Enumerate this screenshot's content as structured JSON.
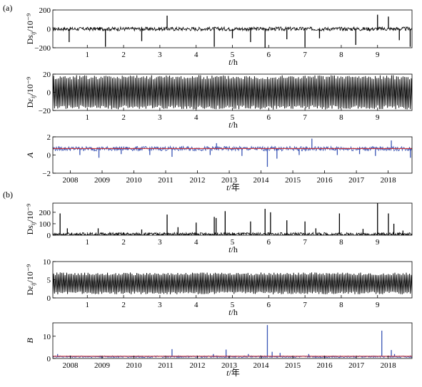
{
  "figure": {
    "part_a_label": "(a)",
    "part_b_label": "(b)"
  },
  "colors": {
    "black_series": "#000000",
    "blue_series": "#3a55b5",
    "red_series": "#cc2222",
    "axis": "#000000"
  },
  "chart_data": [
    {
      "type": "line",
      "panel": "a1",
      "ylabel": "Ds_ij/10⁻⁹",
      "xlabel": "t/h",
      "x_ticks": [
        "1",
        "2",
        "3",
        "4",
        "5",
        "6",
        "7",
        "8",
        "9"
      ],
      "x_tick_values": [
        1,
        2,
        3,
        4,
        5,
        6,
        7,
        8,
        9
      ],
      "xlim": [
        0.05,
        9.95
      ],
      "y_ticks": [
        "200",
        "0",
        "−200"
      ],
      "y_tick_values": [
        200,
        0,
        -200
      ],
      "ylim": [
        -200,
        200
      ],
      "series": [
        {
          "color": "#000000",
          "baseline": 0,
          "band": 20,
          "spikes": [
            [
              0.5,
              -140
            ],
            [
              1.5,
              -190
            ],
            [
              2.5,
              -130
            ],
            [
              3.2,
              140
            ],
            [
              4.5,
              -190
            ],
            [
              5.0,
              -100
            ],
            [
              5.5,
              -140
            ],
            [
              5.9,
              -200
            ],
            [
              6.5,
              -110
            ],
            [
              7.0,
              -190
            ],
            [
              7.4,
              -100
            ],
            [
              8.4,
              -170
            ],
            [
              9.0,
              150
            ],
            [
              9.3,
              130
            ],
            [
              9.6,
              -120
            ],
            [
              9.9,
              -190
            ]
          ]
        }
      ],
      "grid": false
    },
    {
      "type": "line",
      "panel": "a2",
      "ylabel": "Dε_ij/10⁻⁹",
      "xlabel": "t/h",
      "x_ticks": [
        "1",
        "2",
        "3",
        "4",
        "5",
        "6",
        "7",
        "8",
        "9"
      ],
      "x_tick_values": [
        1,
        2,
        3,
        4,
        5,
        6,
        7,
        8,
        9
      ],
      "xlim": [
        0.05,
        9.95
      ],
      "y_ticks": [
        "20",
        "0",
        "−20"
      ],
      "y_tick_values": [
        20,
        0,
        -20
      ],
      "ylim": [
        -20,
        20
      ],
      "series": [
        {
          "color": "#000000",
          "baseline": 0,
          "amplitude": 19,
          "cycles": 220
        }
      ],
      "grid": false
    },
    {
      "type": "line",
      "panel": "a3",
      "ylabel": "A",
      "xlabel": "t/年",
      "x_ticks": [
        "2008",
        "2009",
        "2010",
        "2011",
        "2012",
        "2013",
        "2014",
        "2015",
        "2016",
        "2017",
        "2018"
      ],
      "x_tick_values": [
        2008,
        2009,
        2010,
        2011,
        2012,
        2013,
        2014,
        2015,
        2016,
        2017,
        2018
      ],
      "xlim": [
        2007.45,
        2018.75
      ],
      "y_ticks": [
        "2",
        "0",
        "−2"
      ],
      "y_tick_values": [
        2,
        0,
        -2
      ],
      "ylim": [
        -2,
        2
      ],
      "series": [
        {
          "color": "#3a55b5",
          "baseline": 0.7,
          "band": 0.25,
          "spikes": [
            [
              2008.3,
              0.0
            ],
            [
              2008.9,
              -0.3
            ],
            [
              2009.6,
              0.1
            ],
            [
              2010.5,
              0.0
            ],
            [
              2011.2,
              -0.2
            ],
            [
              2012.6,
              1.3
            ],
            [
              2012.4,
              0.0
            ],
            [
              2013.4,
              -0.1
            ],
            [
              2014.2,
              -1.3
            ],
            [
              2014.5,
              -0.4
            ],
            [
              2015.2,
              0.0
            ],
            [
              2015.6,
              1.8
            ],
            [
              2016.4,
              0.0
            ],
            [
              2017.1,
              0.1
            ],
            [
              2017.6,
              -0.1
            ],
            [
              2018.1,
              1.6
            ],
            [
              2018.7,
              -0.3
            ]
          ]
        },
        {
          "color": "#cc2222",
          "baseline": 0.72,
          "band": 0
        }
      ],
      "grid": false
    },
    {
      "type": "line",
      "panel": "b1",
      "ylabel": "Ds_ij/10⁻⁹",
      "xlabel": "t/h",
      "x_ticks": [
        "1",
        "2",
        "3",
        "4",
        "5",
        "6",
        "7",
        "8",
        "9"
      ],
      "x_tick_values": [
        1,
        2,
        3,
        4,
        5,
        6,
        7,
        8,
        9
      ],
      "xlim": [
        0.05,
        9.95
      ],
      "y_ticks": [
        "200",
        "100",
        "0"
      ],
      "y_tick_values": [
        200,
        100,
        0
      ],
      "ylim": [
        0,
        280
      ],
      "series": [
        {
          "color": "#000000",
          "baseline": 8,
          "band": 15,
          "spikes": [
            [
              0.25,
              190
            ],
            [
              0.45,
              60
            ],
            [
              1.3,
              60
            ],
            [
              2.5,
              50
            ],
            [
              3.2,
              180
            ],
            [
              3.5,
              70
            ],
            [
              4.0,
              110
            ],
            [
              4.5,
              160
            ],
            [
              4.55,
              150
            ],
            [
              4.8,
              210
            ],
            [
              5.5,
              120
            ],
            [
              5.9,
              230
            ],
            [
              6.05,
              200
            ],
            [
              6.5,
              130
            ],
            [
              7.0,
              120
            ],
            [
              7.3,
              60
            ],
            [
              7.95,
              190
            ],
            [
              8.6,
              55
            ],
            [
              9.0,
              280
            ],
            [
              9.3,
              190
            ],
            [
              9.45,
              100
            ],
            [
              9.7,
              40
            ]
          ]
        }
      ],
      "grid": false
    },
    {
      "type": "line",
      "panel": "b2",
      "ylabel": "Dε_ij/10⁻⁹",
      "xlabel": "t/h",
      "x_ticks": [
        "1",
        "2",
        "3",
        "4",
        "5",
        "6",
        "7",
        "8",
        "9"
      ],
      "x_tick_values": [
        1,
        2,
        3,
        4,
        5,
        6,
        7,
        8,
        9
      ],
      "xlim": [
        0.05,
        9.95
      ],
      "y_ticks": [
        "10",
        "5",
        "0"
      ],
      "y_tick_values": [
        10,
        5,
        0
      ],
      "ylim": [
        0,
        10
      ],
      "series": [
        {
          "color": "#000000",
          "baseline": 4,
          "amplitude": 3,
          "cycles": 220
        }
      ],
      "grid": false
    },
    {
      "type": "line",
      "panel": "b3",
      "ylabel": "B",
      "xlabel": "t/年",
      "x_ticks": [
        "2008",
        "2009",
        "2010",
        "2011",
        "2012",
        "2013",
        "2014",
        "2015",
        "2016",
        "2017",
        "2018"
      ],
      "x_tick_values": [
        2008,
        2009,
        2010,
        2011,
        2012,
        2013,
        2014,
        2015,
        2016,
        2017,
        2018
      ],
      "xlim": [
        2007.45,
        2018.75
      ],
      "y_ticks": [
        "10",
        "0"
      ],
      "y_tick_values": [
        10,
        0
      ],
      "ylim": [
        0,
        16
      ],
      "series": [
        {
          "color": "#3a55b5",
          "baseline": 0.8,
          "band": 0.4,
          "spikes": [
            [
              2007.6,
              2.0
            ],
            [
              2011.2,
              4.2
            ],
            [
              2012.5,
              2.0
            ],
            [
              2012.9,
              4.0
            ],
            [
              2013.6,
              2.0
            ],
            [
              2014.2,
              15.0
            ],
            [
              2014.35,
              3.0
            ],
            [
              2014.6,
              2.5
            ],
            [
              2015.5,
              2.0
            ],
            [
              2017.8,
              12.5
            ],
            [
              2018.1,
              3.8
            ],
            [
              2018.2,
              2.0
            ]
          ]
        },
        {
          "color": "#cc2222",
          "baseline": 1.0,
          "band": 0
        }
      ],
      "grid": false
    }
  ]
}
